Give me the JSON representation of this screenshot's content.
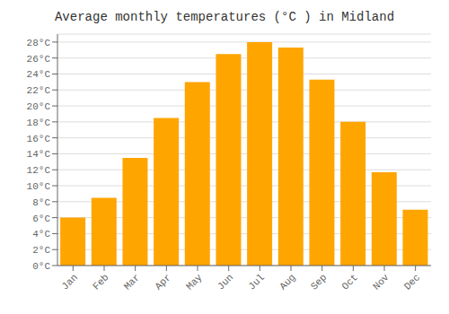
{
  "chart_data": {
    "type": "bar",
    "title": "Average monthly temperatures (°C ) in Midland",
    "categories": [
      "Jan",
      "Feb",
      "Mar",
      "Apr",
      "May",
      "Jun",
      "Jul",
      "Aug",
      "Sep",
      "Oct",
      "Nov",
      "Dec"
    ],
    "values": [
      6.0,
      8.5,
      13.5,
      18.5,
      23.0,
      26.5,
      28.0,
      27.3,
      23.3,
      18.0,
      11.7,
      7.0
    ],
    "color": "#FFA500",
    "ylim": [
      0,
      29
    ],
    "yticks": [
      {
        "value": 0,
        "label": "0°C"
      },
      {
        "value": 2,
        "label": "2°C"
      },
      {
        "value": 4,
        "label": "4°C"
      },
      {
        "value": 6,
        "label": "6°C"
      },
      {
        "value": 8,
        "label": "8°C"
      },
      {
        "value": 10,
        "label": "10°C"
      },
      {
        "value": 12,
        "label": "12°C"
      },
      {
        "value": 14,
        "label": "14°C"
      },
      {
        "value": 16,
        "label": "16°C"
      },
      {
        "value": 18,
        "label": "18°C"
      },
      {
        "value": 20,
        "label": "20°C"
      },
      {
        "value": 22,
        "label": "22°C"
      },
      {
        "value": 24,
        "label": "24°C"
      },
      {
        "value": 26,
        "label": "26°C"
      },
      {
        "value": 28,
        "label": "28°C"
      }
    ],
    "grid": true
  }
}
